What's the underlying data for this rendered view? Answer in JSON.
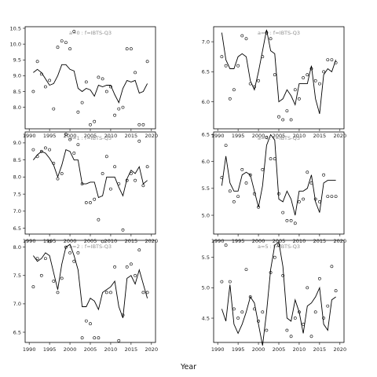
{
  "chart_data": [
    {
      "type": "line",
      "title": "a=0 : f=IBTS-Q3",
      "x_ticks": [
        "1990",
        "1995",
        "2000",
        "2005",
        "2010",
        "2015",
        "2020"
      ],
      "y_ticks": [
        "8.0",
        "8.5",
        "9.0",
        "9.5",
        "10.0",
        "10.5"
      ],
      "xlim": [
        1989,
        2021
      ],
      "ylim": [
        7.32,
        10.55
      ],
      "series": [
        {
          "kind": "points",
          "x": [
            1991,
            1992,
            1993,
            1994,
            1995,
            1996,
            1997,
            1998,
            1999,
            2000,
            2001,
            2002,
            2003,
            2004,
            2005,
            2006,
            2007,
            2008,
            2009,
            2010,
            2011,
            2012,
            2013,
            2014,
            2015,
            2016,
            2017,
            2018,
            2019
          ],
          "y": [
            8.5,
            9.45,
            9.05,
            8.65,
            8.85,
            7.95,
            9.9,
            10.1,
            10.05,
            9.85,
            10.4,
            7.85,
            8.15,
            8.8,
            7.45,
            7.55,
            8.95,
            8.9,
            8.5,
            8.65,
            7.75,
            7.95,
            8.0,
            9.85,
            9.85,
            9.1,
            7.45,
            7.45,
            9.45
          ]
        },
        {
          "kind": "line",
          "x": [
            1991,
            1992,
            1993,
            1994,
            1995,
            1996,
            1997,
            1998,
            1999,
            2000,
            2001,
            2002,
            2003,
            2004,
            2005,
            2006,
            2007,
            2008,
            2009,
            2010,
            2011,
            2012,
            2013,
            2014,
            2015,
            2016,
            2017,
            2018,
            2019
          ],
          "y": [
            9.1,
            9.2,
            9.1,
            8.9,
            8.7,
            8.75,
            9.0,
            9.35,
            9.35,
            9.2,
            9.15,
            8.6,
            8.5,
            8.6,
            8.55,
            8.35,
            8.7,
            8.65,
            8.7,
            8.7,
            8.4,
            8.15,
            8.6,
            8.85,
            8.8,
            8.85,
            8.45,
            8.5,
            8.75
          ]
        }
      ]
    },
    {
      "type": "line",
      "title": "a=3 : f=IBTS-Q3",
      "x_ticks": [
        "1990",
        "1995",
        "2000",
        "2005",
        "2010",
        "2015",
        "2020"
      ],
      "y_ticks": [
        "6.0",
        "6.5",
        "7.0"
      ],
      "xlim": [
        1989,
        2021
      ],
      "ylim": [
        5.55,
        7.25
      ],
      "series": [
        {
          "kind": "points",
          "x": [
            1991,
            1992,
            1993,
            1994,
            1995,
            1996,
            1997,
            1998,
            1999,
            2000,
            2001,
            2002,
            2003,
            2004,
            2005,
            2006,
            2007,
            2008,
            2009,
            2010,
            2011,
            2012,
            2013,
            2014,
            2015,
            2016,
            2017,
            2018,
            2019
          ],
          "y": [
            6.75,
            6.6,
            6.05,
            6.2,
            6.6,
            7.1,
            7.05,
            6.3,
            6.25,
            6.35,
            6.75,
            7.15,
            7.05,
            6.45,
            5.75,
            5.7,
            5.85,
            5.7,
            6.2,
            6.05,
            6.4,
            6.45,
            6.55,
            6.35,
            6.3,
            6.5,
            6.7,
            6.7,
            6.65
          ]
        },
        {
          "kind": "line",
          "x": [
            1991,
            1992,
            1993,
            1994,
            1995,
            1996,
            1997,
            1998,
            1999,
            2000,
            2001,
            2002,
            2003,
            2004,
            2005,
            2006,
            2007,
            2008,
            2009,
            2010,
            2011,
            2012,
            2013,
            2014,
            2015,
            2016,
            2017,
            2018,
            2019
          ],
          "y": [
            7.15,
            6.7,
            6.55,
            6.55,
            6.75,
            6.8,
            6.75,
            6.35,
            6.2,
            6.5,
            6.85,
            7.2,
            6.85,
            6.8,
            6.0,
            6.05,
            6.2,
            6.1,
            5.95,
            6.3,
            6.3,
            6.3,
            6.6,
            6.05,
            5.8,
            6.45,
            6.55,
            6.5,
            6.7
          ]
        }
      ]
    },
    {
      "type": "line",
      "title": "a=1 : f=IBTS-Q3",
      "x_ticks": [
        "1990",
        "1995",
        "2000",
        "2005",
        "2010",
        "2015",
        "2020"
      ],
      "y_ticks": [
        "6.5",
        "7.0",
        "7.5",
        "8.0",
        "8.5",
        "9.0"
      ],
      "xlim": [
        1989,
        2021
      ],
      "ylim": [
        6.33,
        9.32
      ],
      "series": [
        {
          "kind": "points",
          "x": [
            1991,
            1992,
            1993,
            1994,
            1995,
            1996,
            1997,
            1998,
            1999,
            2000,
            2001,
            2002,
            2003,
            2004,
            2005,
            2006,
            2007,
            2008,
            2009,
            2010,
            2011,
            2012,
            2013,
            2014,
            2015,
            2016,
            2017,
            2018,
            2019
          ],
          "y": [
            8.8,
            8.6,
            8.75,
            8.85,
            8.8,
            8.4,
            7.95,
            8.1,
            9.25,
            9.1,
            8.7,
            8.95,
            7.8,
            7.25,
            7.25,
            7.35,
            6.75,
            8.1,
            8.6,
            7.65,
            8.3,
            7.8,
            6.45,
            7.9,
            8.1,
            7.9,
            9.05,
            7.75,
            8.3
          ]
        },
        {
          "kind": "line",
          "x": [
            1991,
            1992,
            1993,
            1994,
            1995,
            1996,
            1997,
            1998,
            1999,
            2000,
            2001,
            2002,
            2003,
            2004,
            2005,
            2006,
            2007,
            2008,
            2009,
            2010,
            2011,
            2012,
            2013,
            2014,
            2015,
            2016,
            2017,
            2018,
            2019
          ],
          "y": [
            8.5,
            8.65,
            8.75,
            8.7,
            8.55,
            8.35,
            8.0,
            8.35,
            8.8,
            8.75,
            8.5,
            8.5,
            7.8,
            7.8,
            7.85,
            7.85,
            7.4,
            7.45,
            8.0,
            8.0,
            8.0,
            7.7,
            7.45,
            7.95,
            8.2,
            8.1,
            8.3,
            7.8,
            7.9
          ]
        }
      ]
    },
    {
      "type": "line",
      "title": "a=4 : f=IBTS-Q3",
      "x_ticks": [
        "1990",
        "1995",
        "2000",
        "2005",
        "2010",
        "2015",
        "2020"
      ],
      "y_ticks": [
        "5.0",
        "5.5",
        "6.0",
        "6.5"
      ],
      "xlim": [
        1989,
        2021
      ],
      "ylim": [
        4.65,
        6.55
      ],
      "series": [
        {
          "kind": "points",
          "x": [
            1991,
            1992,
            1993,
            1994,
            1995,
            1996,
            1997,
            1998,
            1999,
            2000,
            2001,
            2002,
            2003,
            2004,
            2005,
            2006,
            2007,
            2008,
            2009,
            2010,
            2011,
            2012,
            2013,
            2014,
            2015,
            2016,
            2017,
            2018,
            2019
          ],
          "y": [
            5.7,
            6.3,
            5.45,
            5.25,
            5.35,
            5.85,
            5.6,
            5.75,
            5.4,
            5.15,
            5.85,
            6.45,
            6.05,
            6.05,
            5.4,
            5.05,
            4.9,
            4.9,
            4.85,
            5.25,
            5.3,
            5.8,
            5.6,
            5.3,
            5.25,
            5.75,
            5.35,
            5.35,
            5.35
          ]
        },
        {
          "kind": "line",
          "x": [
            1991,
            1992,
            1993,
            1994,
            1995,
            1996,
            1997,
            1998,
            1999,
            2000,
            2001,
            2002,
            2003,
            2004,
            2005,
            2006,
            2007,
            2008,
            2009,
            2010,
            2011,
            2012,
            2013,
            2014,
            2015,
            2016,
            2017,
            2018,
            2019
          ],
          "y": [
            5.55,
            6.1,
            5.6,
            5.45,
            5.45,
            5.75,
            5.8,
            5.75,
            5.45,
            5.15,
            5.55,
            6.3,
            6.5,
            6.4,
            5.3,
            5.25,
            5.45,
            5.3,
            5.0,
            5.45,
            5.45,
            5.5,
            5.75,
            5.25,
            5.05,
            5.6,
            5.65,
            5.65,
            5.65
          ]
        }
      ]
    },
    {
      "type": "line",
      "title": "a=2 : f=IBTS-Q3",
      "x_ticks": [
        "1990",
        "1995",
        "2000",
        "2005",
        "2010",
        "2015",
        "2020"
      ],
      "y_ticks": [
        "6.5",
        "7.0",
        "7.5",
        "8.0"
      ],
      "xlim": [
        1989,
        2021
      ],
      "ylim": [
        6.32,
        8.12
      ],
      "series": [
        {
          "kind": "points",
          "x": [
            1991,
            1992,
            1993,
            1994,
            1995,
            1996,
            1997,
            1998,
            1999,
            2000,
            2001,
            2002,
            2003,
            2004,
            2005,
            2006,
            2007,
            2008,
            2009,
            2010,
            2011,
            2012,
            2013,
            2014,
            2015,
            2016,
            2017,
            2018,
            2019
          ],
          "y": [
            7.3,
            7.8,
            7.5,
            7.8,
            8.1,
            7.4,
            7.2,
            7.45,
            8.0,
            7.9,
            7.75,
            7.9,
            6.4,
            6.7,
            6.65,
            6.4,
            6.4,
            8.1,
            7.2,
            7.2,
            7.65,
            6.35,
            6.8,
            7.65,
            7.7,
            7.5,
            7.95,
            7.2,
            7.2
          ]
        },
        {
          "kind": "line",
          "x": [
            1991,
            1992,
            1993,
            1994,
            1995,
            1996,
            1997,
            1998,
            1999,
            2000,
            2001,
            2002,
            2003,
            2004,
            2005,
            2006,
            2007,
            2008,
            2009,
            2010,
            2011,
            2012,
            2013,
            2014,
            2015,
            2016,
            2017,
            2018,
            2019
          ],
          "y": [
            7.85,
            7.75,
            7.8,
            7.9,
            7.85,
            7.55,
            7.25,
            7.7,
            8.0,
            8.05,
            7.85,
            7.6,
            6.95,
            6.95,
            7.1,
            7.05,
            6.9,
            7.2,
            7.25,
            7.3,
            7.4,
            6.95,
            6.75,
            7.45,
            7.5,
            7.35,
            7.6,
            7.35,
            7.1
          ]
        }
      ]
    },
    {
      "type": "line",
      "title": "a=5 : f=IBTS-Q3",
      "x_ticks": [
        "1990",
        "1995",
        "2000",
        "2005",
        "2010",
        "2015",
        "2020"
      ],
      "y_ticks": [
        "4.5",
        "5.0",
        "5.5"
      ],
      "xlim": [
        1989,
        2021
      ],
      "ylim": [
        4.1,
        5.78
      ],
      "series": [
        {
          "kind": "points",
          "x": [
            1991,
            1992,
            1993,
            1994,
            1995,
            1996,
            1997,
            1998,
            1999,
            2000,
            2001,
            2002,
            2003,
            2004,
            2005,
            2006,
            2007,
            2008,
            2009,
            2010,
            2011,
            2012,
            2013,
            2014,
            2015,
            2016,
            2017,
            2018,
            2019
          ],
          "y": [
            5.1,
            5.7,
            5.1,
            4.65,
            4.5,
            4.6,
            5.3,
            4.85,
            4.65,
            4.45,
            4.6,
            4.3,
            5.25,
            5.5,
            5.7,
            5.2,
            4.3,
            4.2,
            4.5,
            4.6,
            4.4,
            5.0,
            4.2,
            4.6,
            5.15,
            4.5,
            4.7,
            5.35,
            4.95
          ]
        },
        {
          "kind": "line",
          "x": [
            1991,
            1992,
            1993,
            1994,
            1995,
            1996,
            1997,
            1998,
            1999,
            2000,
            2001,
            2002,
            2003,
            2004,
            2005,
            2006,
            2007,
            2008,
            2009,
            2010,
            2011,
            2012,
            2013,
            2014,
            2015,
            2016,
            2017,
            2018,
            2019
          ],
          "y": [
            4.65,
            4.45,
            5.05,
            4.4,
            4.25,
            4.4,
            4.6,
            4.85,
            4.75,
            4.4,
            4.05,
            4.6,
            5.3,
            5.7,
            5.75,
            5.35,
            4.5,
            4.45,
            4.8,
            4.6,
            4.25,
            4.7,
            4.75,
            4.85,
            5.0,
            4.4,
            4.3,
            4.8,
            4.85
          ]
        }
      ]
    }
  ],
  "figure": {
    "xlabel": "Year"
  }
}
